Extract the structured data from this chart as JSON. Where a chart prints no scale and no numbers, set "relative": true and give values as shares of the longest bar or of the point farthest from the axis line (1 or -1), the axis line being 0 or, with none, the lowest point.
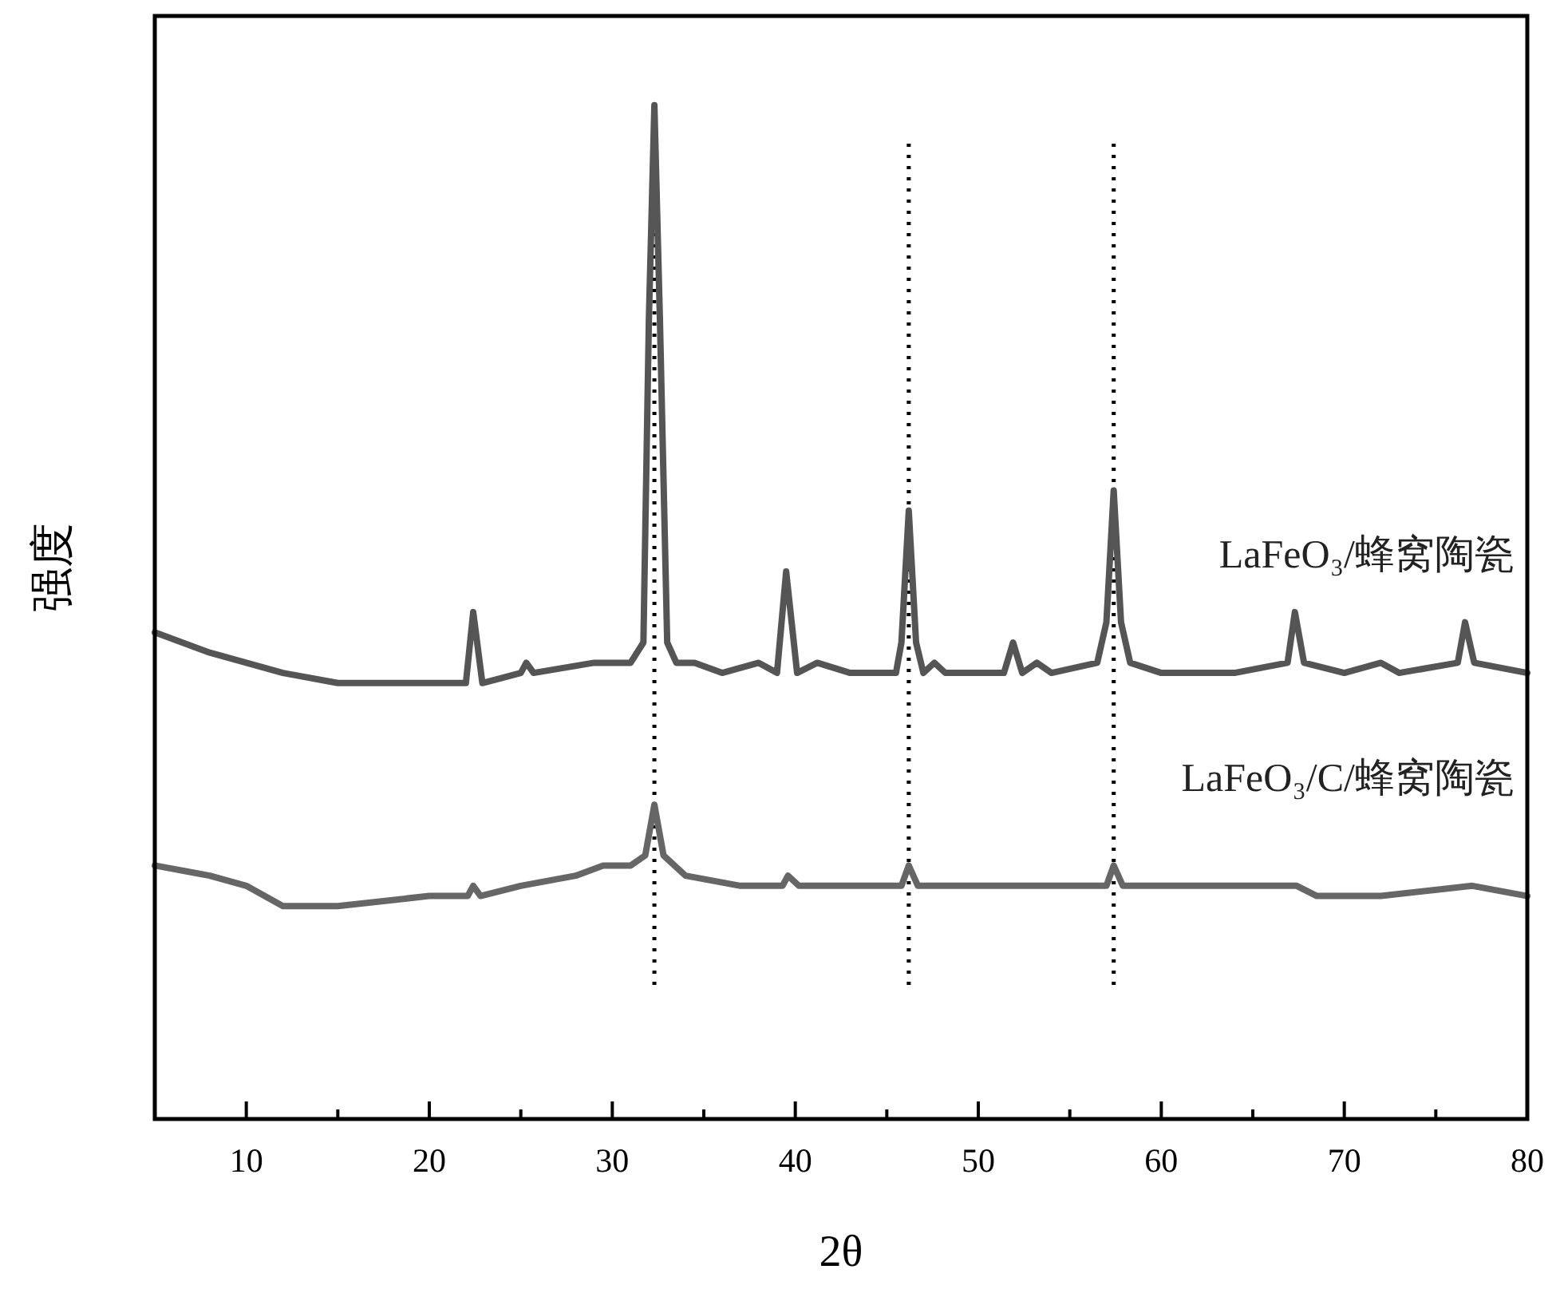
{
  "chart_data": {
    "type": "line",
    "xlabel": "2θ",
    "ylabel": "强度",
    "relative": true,
    "tick_labels": "x",
    "xlim": [
      5,
      80
    ],
    "xticks": [
      10,
      {
        "value": 15,
        "label": null
      },
      20,
      {
        "value": 25,
        "label": null
      },
      30,
      {
        "value": 35,
        "label": null
      },
      40,
      {
        "value": 45,
        "label": null
      },
      50,
      {
        "value": 55,
        "label": null
      },
      60,
      {
        "value": 65,
        "label": null
      },
      70,
      {
        "value": 75,
        "label": null
      },
      80
    ],
    "series": [
      {
        "name": "LaFeO₃/蜂窝陶瓷",
        "color": "#555555",
        "x": [
          5,
          8,
          10,
          12,
          15,
          20,
          22,
          22.4,
          22.9,
          25,
          25.3,
          25.7,
          29,
          31,
          31.7,
          32.0,
          32.3,
          32.6,
          33,
          33.5,
          34.5,
          36,
          38,
          39,
          39.5,
          40.1,
          41.2,
          43,
          45.5,
          45.8,
          46.2,
          46.6,
          47,
          47.6,
          48.2,
          51.4,
          51.9,
          52.4,
          53.2,
          54,
          56.5,
          57.0,
          57.4,
          57.8,
          58.3,
          60,
          64,
          66.9,
          67.3,
          67.8,
          70,
          72,
          73,
          76.2,
          76.6,
          77.1,
          80
        ],
        "values": [
          0.48,
          0.46,
          0.45,
          0.44,
          0.43,
          0.43,
          0.43,
          0.5,
          0.43,
          0.44,
          0.45,
          0.44,
          0.45,
          0.45,
          0.47,
          0.79,
          1,
          0.79,
          0.47,
          0.45,
          0.45,
          0.44,
          0.45,
          0.44,
          0.54,
          0.44,
          0.45,
          0.44,
          0.44,
          0.47,
          0.6,
          0.47,
          0.44,
          0.45,
          0.44,
          0.44,
          0.47,
          0.44,
          0.45,
          0.44,
          0.45,
          0.49,
          0.62,
          0.49,
          0.45,
          0.44,
          0.44,
          0.45,
          0.5,
          0.45,
          0.44,
          0.45,
          0.44,
          0.45,
          0.49,
          0.45,
          0.44
        ]
      },
      {
        "name": "LaFeO₃/C/蜂窝陶瓷",
        "color": "#666666",
        "x": [
          5,
          8,
          10,
          12,
          15,
          20,
          22.1,
          22.4,
          22.8,
          25,
          28,
          29.5,
          31,
          31.8,
          32.3,
          32.8,
          34,
          37,
          39.3,
          39.6,
          40.2,
          44,
          45.8,
          46.2,
          46.7,
          52,
          57.0,
          57.4,
          57.9,
          62,
          67.4,
          68.5,
          72,
          77,
          80
        ],
        "values": [
          0.25,
          0.24,
          0.23,
          0.21,
          0.21,
          0.22,
          0.22,
          0.23,
          0.22,
          0.23,
          0.24,
          0.25,
          0.25,
          0.26,
          0.31,
          0.26,
          0.24,
          0.23,
          0.23,
          0.24,
          0.23,
          0.23,
          0.23,
          0.25,
          0.23,
          0.23,
          0.23,
          0.25,
          0.23,
          0.23,
          0.23,
          0.22,
          0.22,
          0.23,
          0.22
        ]
      }
    ],
    "ref_lines": [
      {
        "axis": "x",
        "value": 32.3,
        "color": "#000000",
        "line_style": "dotted"
      },
      {
        "axis": "x",
        "value": 46.2,
        "color": "#000000",
        "line_style": "dotted"
      },
      {
        "axis": "x",
        "value": 57.4,
        "color": "#000000",
        "line_style": "dotted"
      }
    ]
  }
}
